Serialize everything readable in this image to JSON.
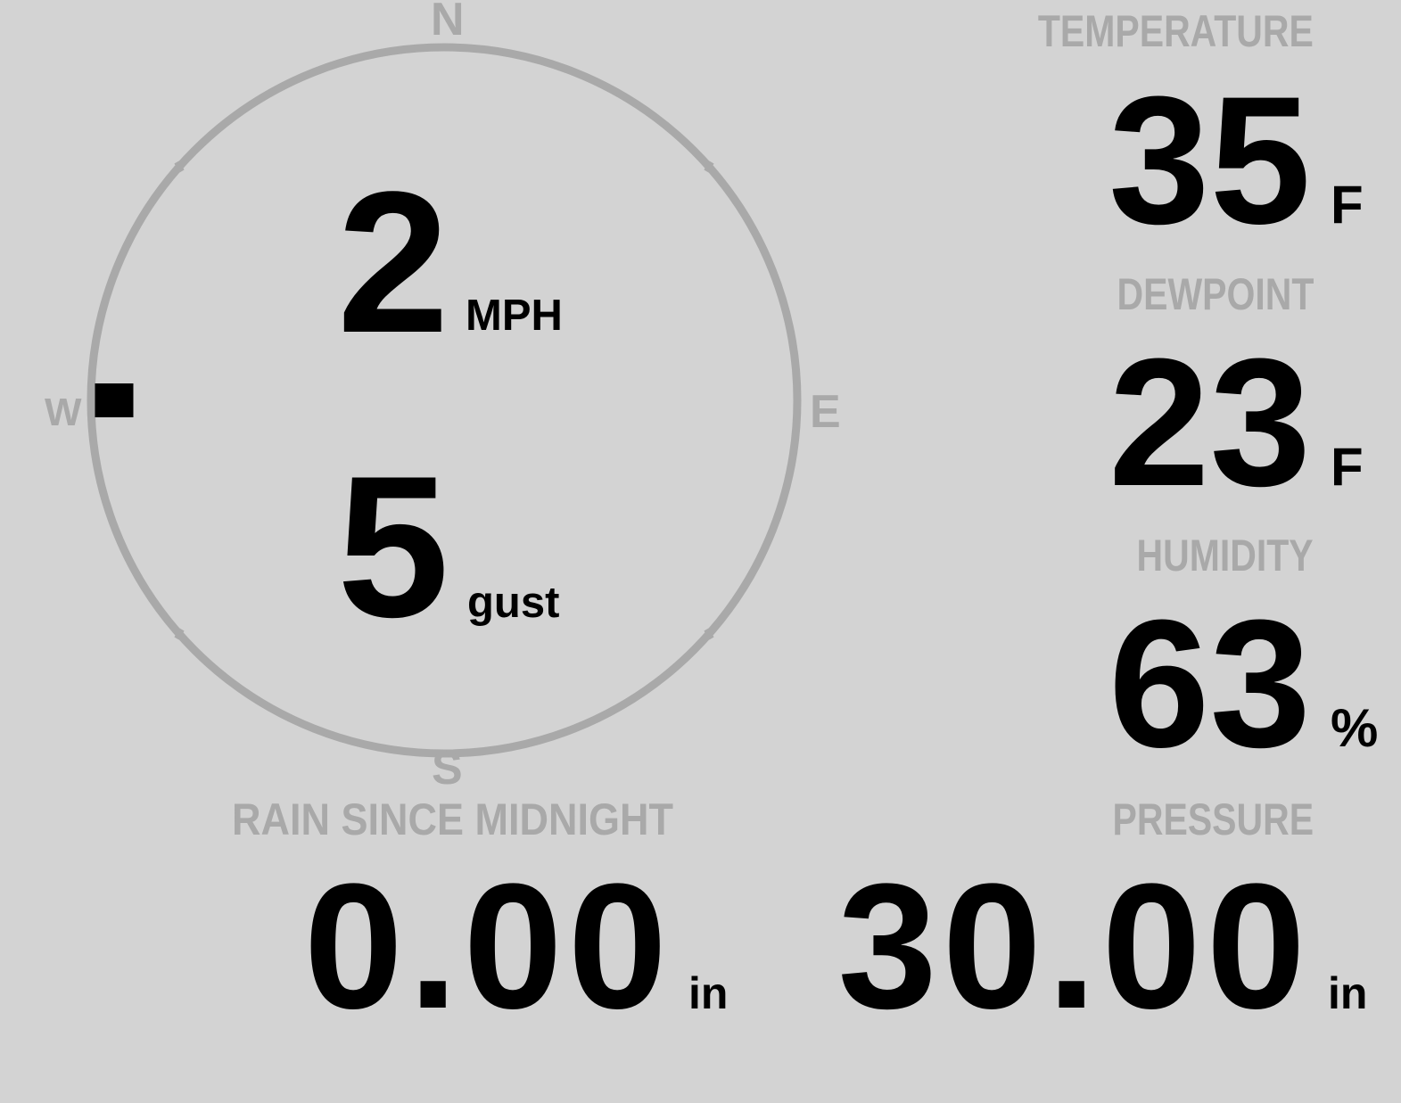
{
  "colors": {
    "background": "#d3d3d3",
    "label": "#a9a9a9",
    "value": "#000000"
  },
  "wind": {
    "compass": {
      "north": "N",
      "south": "S",
      "east": "E",
      "west": "W"
    },
    "direction": "W",
    "direction_degrees": 270,
    "speed": "2",
    "speed_unit": "MPH",
    "gust": "5",
    "gust_unit": "gust"
  },
  "temperature": {
    "label": "TEMPERATURE",
    "value": "35",
    "unit": "F"
  },
  "dewpoint": {
    "label": "DEWPOINT",
    "value": "23",
    "unit": "F"
  },
  "humidity": {
    "label": "HUMIDITY",
    "value": "63",
    "unit": "%"
  },
  "rain": {
    "label": "RAIN SINCE MIDNIGHT",
    "value": "0.00",
    "unit": "in"
  },
  "pressure": {
    "label": "PRESSURE",
    "value": "30.00",
    "unit": "in"
  }
}
